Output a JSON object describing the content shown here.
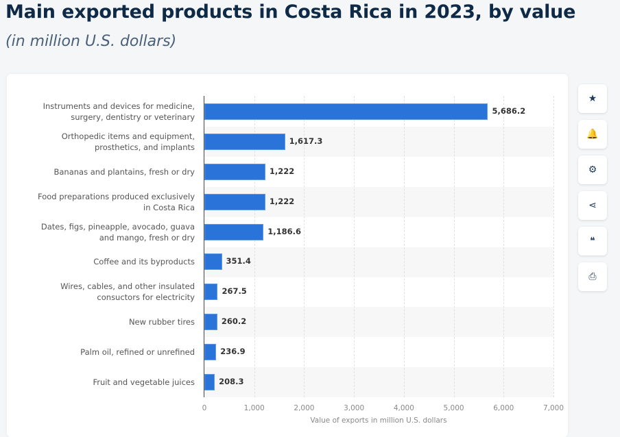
{
  "header": {
    "title": "Main exported products in Costa Rica in 2023, by value",
    "subtitle": "(in million U.S. dollars)"
  },
  "toolbar": [
    {
      "icon": "star-icon",
      "glyph": "★"
    },
    {
      "icon": "bell-icon",
      "glyph": "🔔"
    },
    {
      "icon": "gear-icon",
      "glyph": "⚙"
    },
    {
      "icon": "share-icon",
      "glyph": "⋖"
    },
    {
      "icon": "quote-icon",
      "glyph": "❝"
    },
    {
      "icon": "print-icon",
      "glyph": "⎙"
    }
  ],
  "chart_data": {
    "type": "bar",
    "orientation": "horizontal",
    "categories": [
      [
        "Instruments and devices for medicine,",
        "surgery, dentistry or veterinary"
      ],
      [
        "Orthopedic items and equipment,",
        "prosthetics, and implants"
      ],
      [
        "Bananas and plantains, fresh or dry"
      ],
      [
        "Food preparations produced exclusively",
        "in Costa Rica"
      ],
      [
        "Dates, figs, pineapple, avocado, guava",
        "and mango, fresh or dry"
      ],
      [
        "Coffee and its byproducts"
      ],
      [
        "Wires, cables, and other insulated",
        "consuctors for electricity"
      ],
      [
        "New rubber tires"
      ],
      [
        "Palm oil, refined or unrefined"
      ],
      [
        "Fruit and vegetable juices"
      ]
    ],
    "values": [
      5686.2,
      1617.3,
      1222,
      1222,
      1186.6,
      351.4,
      267.5,
      260.2,
      236.9,
      208.3
    ],
    "value_labels": [
      "5,686.2",
      "1,617.3",
      "1,222",
      "1,222",
      "1,186.6",
      "351.4",
      "267.5",
      "260.2",
      "236.9",
      "208.3"
    ],
    "xlabel": "Value of exports in million U.S. dollars",
    "xlim": [
      0,
      7000
    ],
    "ticks": [
      0,
      1000,
      2000,
      3000,
      4000,
      5000,
      6000,
      7000
    ],
    "tick_labels": [
      "0",
      "1,000",
      "2,000",
      "3,000",
      "4,000",
      "5,000",
      "6,000",
      "7,000"
    ],
    "grid": true,
    "bar_color": "#2a74d9"
  }
}
